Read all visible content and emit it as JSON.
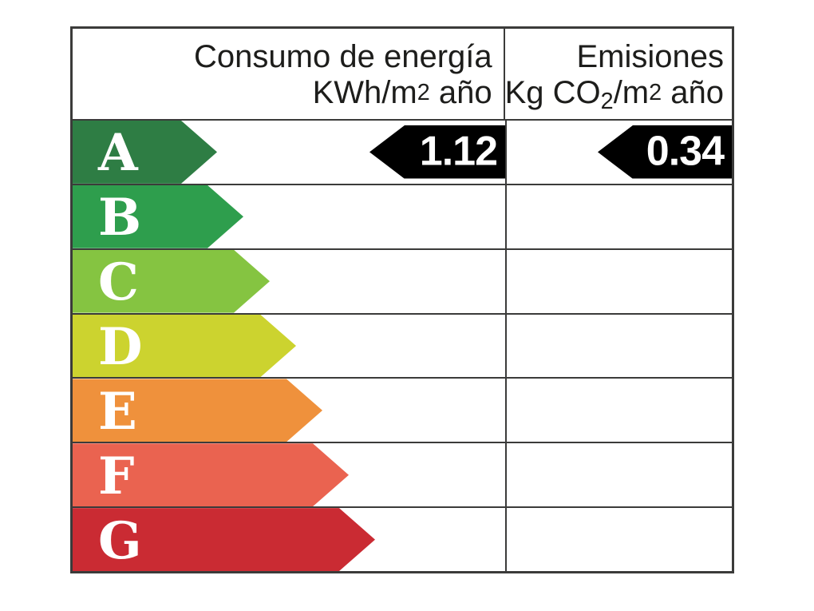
{
  "header": {
    "consumption": {
      "line1": "Consumo de energía",
      "unit_pre": "KWh/m",
      "unit_exp": "2",
      "unit_post": " año"
    },
    "emissions": {
      "line1": "Emisiones",
      "unit_pre": "Kg CO",
      "unit_sub": "2",
      "unit_mid": "/m",
      "unit_exp": "2",
      "unit_post": " año"
    }
  },
  "bands": [
    {
      "grade": "A",
      "color": "#2e7d44"
    },
    {
      "grade": "B",
      "color": "#2e9e4d"
    },
    {
      "grade": "C",
      "color": "#85c441"
    },
    {
      "grade": "D",
      "color": "#ccd32f"
    },
    {
      "grade": "E",
      "color": "#ef913c"
    },
    {
      "grade": "F",
      "color": "#ea6350"
    },
    {
      "grade": "G",
      "color": "#ca2b33"
    }
  ],
  "ratings": {
    "consumption": {
      "value": "1.12",
      "grade": "A",
      "arrow_color": "#000000"
    },
    "emissions": {
      "value": "0.34",
      "grade": "A",
      "arrow_color": "#000000"
    }
  },
  "colors": {
    "border": "#3b3b3a",
    "header_text": "#1d1d1b",
    "letter_text": "#ffffff",
    "value_text": "#ffffff"
  },
  "chart_data": {
    "type": "table",
    "columns": [
      "Consumo de energía KWh/m2 año",
      "Emisiones Kg CO2/m2 año"
    ],
    "scale": [
      "A",
      "B",
      "C",
      "D",
      "E",
      "F",
      "G"
    ],
    "values": {
      "consumo_kwh_m2_ano": 1.12,
      "emisiones_kg_co2_m2_ano": 0.34
    },
    "rated_grade_consumo": "A",
    "rated_grade_emisiones": "A",
    "band_colors": [
      "#2e7d44",
      "#2e9e4d",
      "#85c441",
      "#ccd32f",
      "#ef913c",
      "#ea6350",
      "#ca2b33"
    ],
    "layout": "energy-efficiency-label, bars lengthen from A to G, black left-pointing markers on row A"
  }
}
